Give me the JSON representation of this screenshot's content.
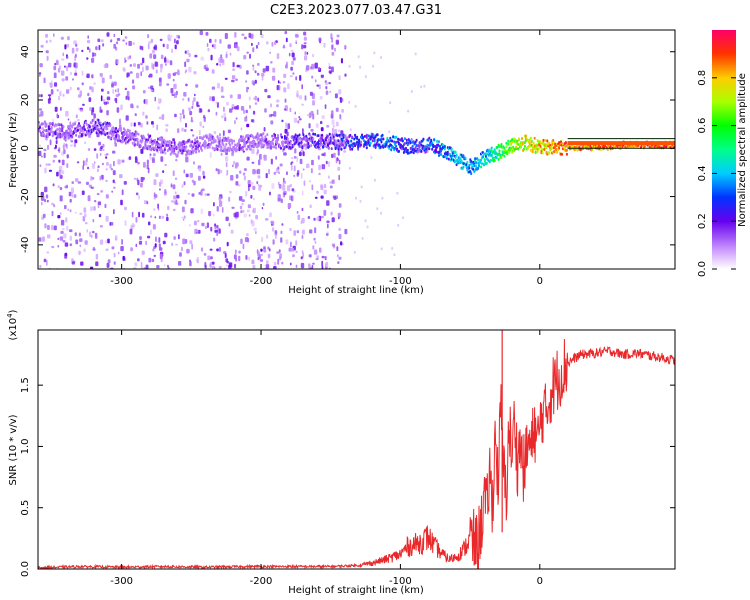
{
  "title": "C2E3.2023.077.03.47.G31",
  "chart_data": [
    {
      "type": "heatmap",
      "title": "C2E3.2023.077.03.47.G31",
      "xlabel": "Height of straight line (km)",
      "ylabel": "Frequency (Hz)",
      "xlim": [
        -360,
        97
      ],
      "ylim": [
        -50,
        49
      ],
      "x_ticks": [
        -300,
        -200,
        -100,
        0
      ],
      "x_tick_labels": [
        "-300",
        "-200",
        "-100",
        "0"
      ],
      "y_ticks": [
        40,
        20,
        0,
        -20,
        -40
      ],
      "y_tick_labels": [
        "40",
        "20",
        "0",
        "-20",
        "-40"
      ],
      "colorbar": {
        "label": "Normalized spectral amplitude",
        "range": [
          0,
          1
        ],
        "ticks": [
          0.0,
          0.2,
          0.4,
          0.6,
          0.8
        ],
        "tick_labels": [
          "0.0",
          "0.2",
          "0.4",
          "0.6",
          "0.8"
        ]
      },
      "ridge": {
        "x": [
          -360,
          -340,
          -320,
          -300,
          -280,
          -260,
          -240,
          -220,
          -200,
          -180,
          -160,
          -140,
          -130,
          -120,
          -110,
          -100,
          -90,
          -80,
          -70,
          -60,
          -50,
          -40,
          -30,
          -20,
          -10,
          0,
          10,
          20,
          40,
          60,
          97
        ],
        "frequency": [
          9,
          7,
          10,
          6,
          3,
          0,
          3,
          2,
          4,
          3,
          4,
          3,
          3,
          4,
          3,
          2,
          1,
          2,
          0,
          -4,
          -7,
          -3,
          -1,
          2,
          3,
          1,
          1,
          1,
          1,
          2,
          2
        ],
        "amplitude": [
          0.25,
          0.2,
          0.28,
          0.22,
          0.2,
          0.22,
          0.18,
          0.18,
          0.2,
          0.25,
          0.3,
          0.32,
          0.35,
          0.42,
          0.45,
          0.38,
          0.35,
          0.4,
          0.45,
          0.5,
          0.48,
          0.55,
          0.65,
          0.8,
          0.85,
          0.9,
          0.95,
          0.97,
          0.98,
          1.0,
          1.0
        ]
      },
      "noise_extent_x": [
        -360,
        -140
      ]
    },
    {
      "type": "line",
      "xlabel": "Height of straight line (km)",
      "ylabel": "SNR (10 * v/v)",
      "y_multiplier": "(x10",
      "y_multiplier_exp": "4",
      "y_multiplier_close": ")",
      "xlim": [
        -360,
        97
      ],
      "ylim": [
        0,
        1.95
      ],
      "x_ticks": [
        -300,
        -200,
        -100,
        0
      ],
      "x_tick_labels": [
        "-300",
        "-200",
        "-100",
        "0"
      ],
      "y_ticks": [
        0.0,
        0.5,
        1.0,
        1.5
      ],
      "y_tick_labels": [
        "0.0",
        "0.5",
        "1.0",
        "1.5"
      ],
      "series": [
        {
          "color": "#e8282a",
          "x": [
            -360,
            -330,
            -300,
            -270,
            -240,
            -210,
            -180,
            -150,
            -140,
            -130,
            -120,
            -110,
            -100,
            -95,
            -90,
            -85,
            -80,
            -75,
            -70,
            -65,
            -60,
            -55,
            -50,
            -45,
            -42,
            -40,
            -38,
            -36,
            -34,
            -32,
            -30,
            -28,
            -26,
            -24,
            -22,
            -20,
            -18,
            -16,
            -14,
            -12,
            -10,
            -8,
            -6,
            -4,
            -2,
            0,
            2,
            4,
            6,
            8,
            10,
            15,
            20,
            25,
            30,
            40,
            50,
            60,
            70,
            80,
            90,
            97
          ],
          "y": [
            0.01,
            0.02,
            0.015,
            0.02,
            0.015,
            0.02,
            0.02,
            0.02,
            0.025,
            0.03,
            0.05,
            0.08,
            0.12,
            0.18,
            0.2,
            0.22,
            0.26,
            0.18,
            0.12,
            0.08,
            0.1,
            0.15,
            0.25,
            0.18,
            0.35,
            0.6,
            0.45,
            0.8,
            0.5,
            1.1,
            0.7,
            1.3,
            0.8,
            0.6,
            1.2,
            0.9,
            1.25,
            0.85,
            1.05,
            0.8,
            0.9,
            1.05,
            0.95,
            1.2,
            1.0,
            1.15,
            1.3,
            1.25,
            1.35,
            1.45,
            1.5,
            1.6,
            1.68,
            1.72,
            1.75,
            1.76,
            1.78,
            1.75,
            1.76,
            1.74,
            1.72,
            1.7
          ]
        }
      ],
      "spike": {
        "x": -27,
        "y": 1.95
      }
    }
  ]
}
